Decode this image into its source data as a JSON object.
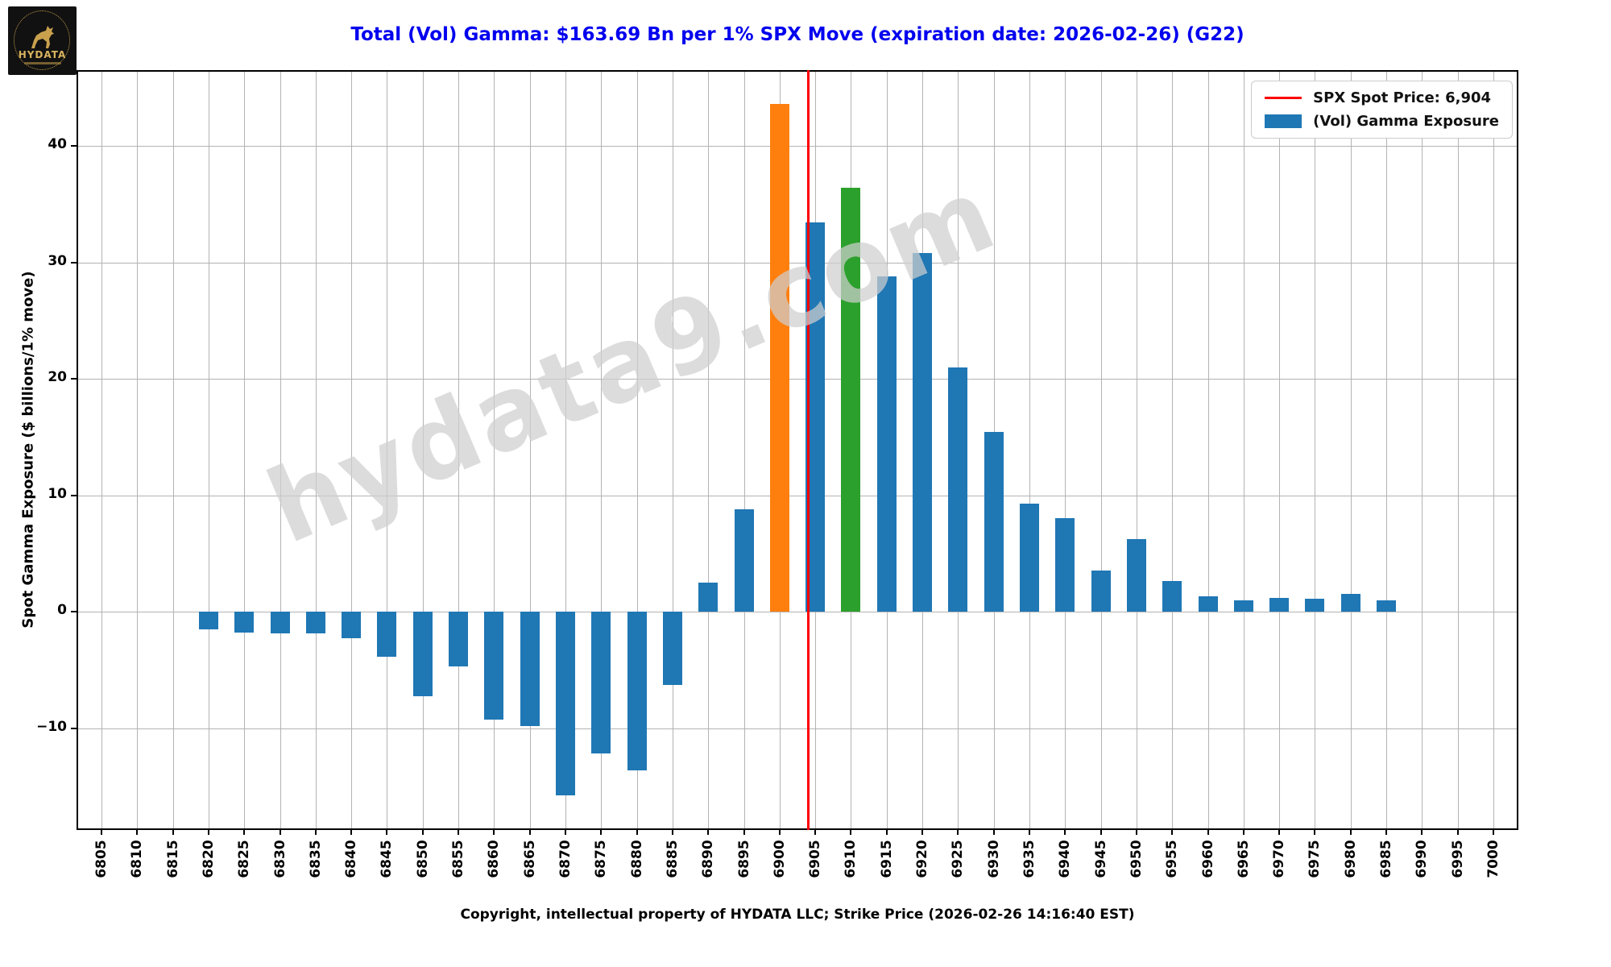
{
  "logo": {
    "brand": "HYDATA"
  },
  "watermark": {
    "text": "hydata9.com"
  },
  "header": {
    "title_color": "#0000ee"
  },
  "legend": {
    "items": [
      {
        "label": "SPX Spot Price: 6,904",
        "swatch": "line",
        "color": "#ff0000"
      },
      {
        "label": "(Vol) Gamma Exposure",
        "swatch": "patch",
        "color": "#1f77b4"
      }
    ]
  },
  "chart_data": {
    "type": "bar",
    "title": "Total (Vol) Gamma: $163.69 Bn per 1% SPX Move (expiration date: 2026-02-26) (G22)",
    "xlabel": "Copyright, intellectual property of HYDATA LLC; Strike Price (2026-02-26 14:16:40 EST)",
    "ylabel": "Spot Gamma Exposure ($ billions/1% move)",
    "total_gamma_bn": 163.69,
    "expiration_date": "2026-02-26",
    "spot_price": 6904,
    "spot_line_color": "#ff0000",
    "categories": [
      6805,
      6810,
      6815,
      6820,
      6825,
      6830,
      6835,
      6840,
      6845,
      6850,
      6855,
      6860,
      6865,
      6870,
      6875,
      6880,
      6885,
      6890,
      6895,
      6900,
      6905,
      6910,
      6915,
      6920,
      6925,
      6930,
      6935,
      6940,
      6945,
      6950,
      6955,
      6960,
      6965,
      6970,
      6975,
      6980,
      6985,
      6990,
      6995,
      7000
    ],
    "values": [
      null,
      null,
      null,
      -1.5,
      -1.8,
      -1.9,
      -1.9,
      -2.3,
      -3.9,
      -7.3,
      -4.7,
      -9.3,
      -9.8,
      -15.8,
      -12.2,
      -13.6,
      -6.3,
      2.5,
      8.8,
      43.6,
      33.4,
      36.4,
      28.8,
      30.8,
      21.0,
      15.4,
      9.3,
      8.0,
      3.5,
      6.2,
      2.6,
      1.3,
      1.0,
      1.2,
      1.1,
      1.5,
      1.0,
      null,
      null,
      null
    ],
    "bar_colors": {
      "default": "#1f77b4",
      "6900": "#ff7f0e",
      "6910": "#2ca02c"
    },
    "y_ticks": [
      40,
      30,
      20,
      10,
      0,
      -10
    ],
    "ylim": [
      -18.75,
      46.5
    ],
    "grid": true,
    "legend_position": "upper right"
  }
}
